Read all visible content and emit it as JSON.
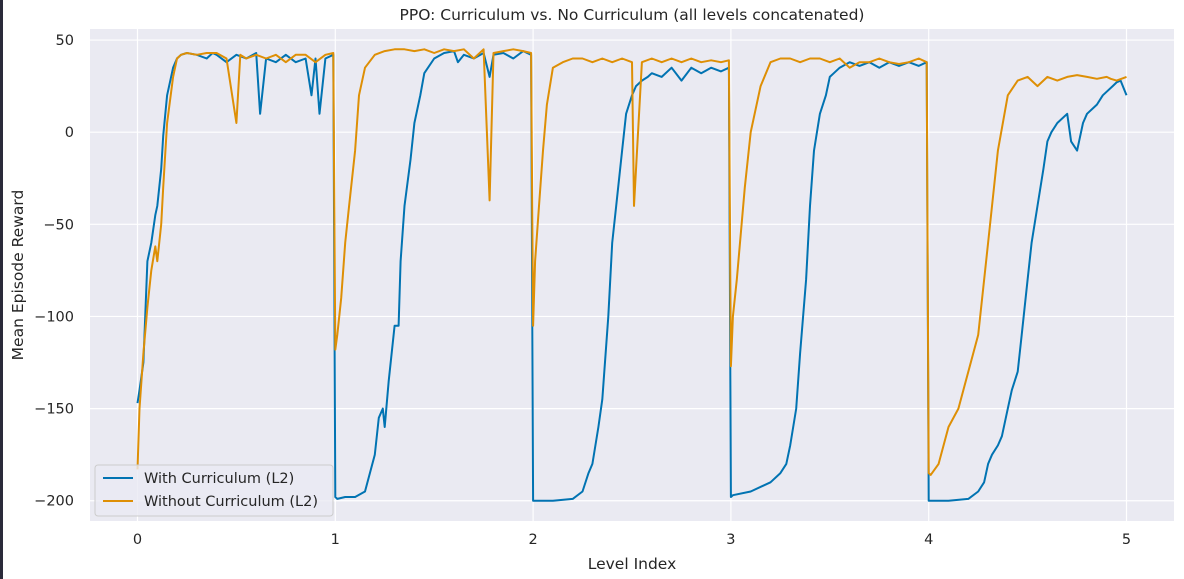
{
  "chart_data": {
    "type": "line",
    "title": "PPO: Curriculum vs. No Curriculum (all levels concatenated)",
    "xlabel": "Level Index",
    "ylabel": "Mean Episode Reward",
    "xlim": [
      -0.24,
      5.24
    ],
    "ylim": [
      -211,
      56
    ],
    "xticks": [
      "0",
      "1",
      "2",
      "3",
      "4",
      "5"
    ],
    "yticks": [
      "50",
      "0",
      "−50",
      "−100",
      "−150",
      "−200"
    ],
    "grid": true,
    "legend_position": "lower-left",
    "series": [
      {
        "name": "With Curriculum (L2)",
        "color": "#0173b2",
        "x": [
          0,
          0.01,
          0.03,
          0.05,
          0.07,
          0.09,
          0.1,
          0.12,
          0.13,
          0.15,
          0.18,
          0.2,
          0.22,
          0.25,
          0.3,
          0.35,
          0.38,
          0.4,
          0.45,
          0.5,
          0.55,
          0.6,
          0.62,
          0.65,
          0.7,
          0.75,
          0.8,
          0.85,
          0.88,
          0.9,
          0.92,
          0.95,
          0.99,
          1.0,
          1.01,
          1.05,
          1.1,
          1.15,
          1.2,
          1.22,
          1.24,
          1.25,
          1.27,
          1.3,
          1.32,
          1.33,
          1.35,
          1.38,
          1.4,
          1.43,
          1.45,
          1.5,
          1.55,
          1.6,
          1.62,
          1.65,
          1.7,
          1.75,
          1.78,
          1.8,
          1.85,
          1.9,
          1.95,
          1.99,
          2.0,
          2.01,
          2.1,
          2.2,
          2.25,
          2.28,
          2.3,
          2.33,
          2.35,
          2.38,
          2.4,
          2.42,
          2.45,
          2.47,
          2.5,
          2.52,
          2.55,
          2.58,
          2.6,
          2.65,
          2.7,
          2.75,
          2.8,
          2.85,
          2.9,
          2.95,
          2.99,
          3.0,
          3.01,
          3.1,
          3.2,
          3.25,
          3.28,
          3.3,
          3.33,
          3.35,
          3.38,
          3.4,
          3.42,
          3.45,
          3.48,
          3.5,
          3.52,
          3.55,
          3.6,
          3.65,
          3.7,
          3.75,
          3.8,
          3.85,
          3.9,
          3.95,
          3.99,
          4.0,
          4.01,
          4.1,
          4.2,
          4.25,
          4.28,
          4.3,
          4.32,
          4.35,
          4.37,
          4.4,
          4.42,
          4.45,
          4.47,
          4.5,
          4.52,
          4.55,
          4.58,
          4.6,
          4.62,
          4.65,
          4.7,
          4.72,
          4.75,
          4.78,
          4.8,
          4.85,
          4.88,
          4.9,
          4.93,
          4.95,
          4.97,
          5.0
        ],
        "y": [
          -147,
          -140,
          -125,
          -70,
          -60,
          -45,
          -40,
          -20,
          -2,
          20,
          35,
          40,
          42,
          43,
          42,
          40,
          43,
          42,
          38,
          42,
          40,
          43,
          10,
          40,
          38,
          42,
          38,
          40,
          20,
          40,
          10,
          40,
          42,
          -198,
          -199,
          -198,
          -198,
          -195,
          -175,
          -155,
          -150,
          -160,
          -135,
          -105,
          -105,
          -70,
          -40,
          -15,
          5,
          20,
          32,
          40,
          43,
          44,
          38,
          42,
          40,
          43,
          30,
          42,
          43,
          40,
          44,
          42,
          -200,
          -200,
          -200,
          -199,
          -195,
          -185,
          -180,
          -160,
          -145,
          -100,
          -60,
          -40,
          -10,
          10,
          20,
          25,
          28,
          30,
          32,
          30,
          35,
          28,
          35,
          32,
          35,
          33,
          35,
          -198,
          -197,
          -195,
          -190,
          -185,
          -180,
          -170,
          -150,
          -120,
          -80,
          -40,
          -10,
          10,
          20,
          30,
          32,
          35,
          38,
          36,
          38,
          35,
          38,
          36,
          38,
          36,
          38,
          -200,
          -200,
          -200,
          -199,
          -195,
          -190,
          -180,
          -175,
          -170,
          -165,
          -150,
          -140,
          -130,
          -110,
          -80,
          -60,
          -40,
          -20,
          -5,
          0,
          5,
          10,
          -5,
          -10,
          5,
          10,
          15,
          20,
          22,
          25,
          27,
          28,
          20
        ]
      },
      {
        "name": "Without Curriculum (L2)",
        "color": "#de8f05",
        "x": [
          0,
          0.01,
          0.03,
          0.05,
          0.07,
          0.09,
          0.1,
          0.12,
          0.13,
          0.15,
          0.18,
          0.2,
          0.22,
          0.25,
          0.3,
          0.35,
          0.4,
          0.45,
          0.5,
          0.52,
          0.55,
          0.6,
          0.65,
          0.7,
          0.75,
          0.8,
          0.85,
          0.9,
          0.95,
          0.99,
          1.0,
          1.01,
          1.03,
          1.05,
          1.07,
          1.1,
          1.12,
          1.15,
          1.2,
          1.25,
          1.3,
          1.35,
          1.4,
          1.45,
          1.5,
          1.55,
          1.6,
          1.65,
          1.7,
          1.75,
          1.78,
          1.8,
          1.85,
          1.9,
          1.95,
          1.99,
          2.0,
          2.01,
          2.03,
          2.05,
          2.07,
          2.1,
          2.15,
          2.2,
          2.25,
          2.3,
          2.35,
          2.4,
          2.45,
          2.5,
          2.51,
          2.55,
          2.6,
          2.65,
          2.7,
          2.75,
          2.8,
          2.85,
          2.9,
          2.95,
          2.99,
          3.0,
          3.01,
          3.03,
          3.05,
          3.07,
          3.1,
          3.15,
          3.2,
          3.25,
          3.3,
          3.35,
          3.4,
          3.45,
          3.5,
          3.55,
          3.6,
          3.65,
          3.7,
          3.75,
          3.8,
          3.85,
          3.9,
          3.95,
          3.99,
          4.0,
          4.01,
          4.05,
          4.1,
          4.15,
          4.2,
          4.25,
          4.3,
          4.35,
          4.4,
          4.45,
          4.5,
          4.52,
          4.55,
          4.6,
          4.65,
          4.7,
          4.75,
          4.8,
          4.85,
          4.9,
          4.92,
          4.95,
          5.0
        ],
        "y": [
          -183,
          -150,
          -120,
          -95,
          -75,
          -62,
          -70,
          -50,
          -30,
          5,
          30,
          40,
          42,
          43,
          42,
          43,
          43,
          40,
          5,
          42,
          40,
          42,
          40,
          42,
          38,
          42,
          42,
          38,
          42,
          43,
          -118,
          -110,
          -90,
          -60,
          -40,
          -10,
          20,
          35,
          42,
          44,
          45,
          45,
          44,
          45,
          43,
          45,
          44,
          45,
          40,
          45,
          -37,
          43,
          44,
          45,
          44,
          43,
          -105,
          -70,
          -40,
          -10,
          15,
          35,
          38,
          40,
          40,
          38,
          40,
          38,
          40,
          38,
          -40,
          38,
          40,
          38,
          40,
          38,
          40,
          38,
          39,
          38,
          39,
          -127,
          -100,
          -80,
          -55,
          -30,
          0,
          25,
          38,
          40,
          40,
          38,
          40,
          40,
          38,
          40,
          35,
          38,
          38,
          40,
          38,
          37,
          38,
          40,
          38,
          -185,
          -186,
          -180,
          -160,
          -150,
          -130,
          -110,
          -60,
          -10,
          20,
          28,
          30,
          28,
          25,
          30,
          28,
          30,
          31,
          30,
          29,
          30,
          29,
          28,
          30
        ]
      }
    ]
  }
}
